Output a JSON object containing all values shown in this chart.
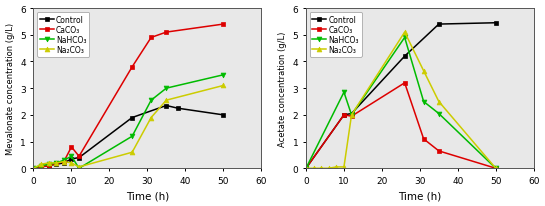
{
  "left": {
    "xlabel": "Time (h)",
    "ylabel": "Mevalonate concentration (g/L)",
    "xlim": [
      0,
      60
    ],
    "ylim": [
      0,
      6
    ],
    "series": [
      {
        "label": "Control",
        "color": "#000000",
        "marker": "s",
        "x": [
          0,
          2,
          4,
          6,
          8,
          10,
          12,
          26,
          35,
          38,
          50
        ],
        "y": [
          0.0,
          0.05,
          0.1,
          0.15,
          0.2,
          0.35,
          0.4,
          1.9,
          2.35,
          2.25,
          2.0
        ]
      },
      {
        "label": "CaCO₃",
        "color": "#dd0000",
        "marker": "s",
        "x": [
          0,
          2,
          4,
          6,
          8,
          10,
          12,
          26,
          31,
          35,
          50
        ],
        "y": [
          0.0,
          0.05,
          0.1,
          0.18,
          0.25,
          0.8,
          0.45,
          3.8,
          4.9,
          5.1,
          5.4
        ]
      },
      {
        "label": "NaHCO₃",
        "color": "#00bb00",
        "marker": "v",
        "x": [
          0,
          2,
          4,
          6,
          8,
          10,
          12,
          26,
          31,
          35,
          50
        ],
        "y": [
          0.0,
          0.1,
          0.15,
          0.2,
          0.3,
          0.45,
          0.0,
          1.2,
          2.55,
          3.0,
          3.5
        ]
      },
      {
        "label": "Na₂CO₃",
        "color": "#cccc00",
        "marker": "^",
        "x": [
          0,
          2,
          4,
          6,
          8,
          10,
          12,
          26,
          31,
          35,
          50
        ],
        "y": [
          0.0,
          0.15,
          0.2,
          0.2,
          0.25,
          0.2,
          0.05,
          0.6,
          1.9,
          2.55,
          3.1
        ]
      }
    ]
  },
  "right": {
    "xlabel": "Time (h)",
    "ylabel": "Acetate concentration (g/L)",
    "xlim": [
      0,
      60
    ],
    "ylim": [
      0,
      6
    ],
    "series": [
      {
        "label": "Control",
        "color": "#000000",
        "marker": "s",
        "x": [
          0,
          10,
          12,
          26,
          35,
          50
        ],
        "y": [
          0.0,
          2.0,
          2.05,
          4.2,
          5.4,
          5.45
        ]
      },
      {
        "label": "CaCO₃",
        "color": "#dd0000",
        "marker": "s",
        "x": [
          0,
          10,
          12,
          26,
          31,
          35,
          50
        ],
        "y": [
          0.0,
          2.0,
          1.95,
          3.2,
          1.1,
          0.65,
          0.0
        ]
      },
      {
        "label": "NaHCO₃",
        "color": "#00bb00",
        "marker": "v",
        "x": [
          0,
          10,
          12,
          26,
          31,
          35,
          50
        ],
        "y": [
          0.0,
          2.85,
          2.0,
          4.9,
          2.5,
          2.05,
          0.0
        ]
      },
      {
        "label": "Na₂CO₃",
        "color": "#cccc00",
        "marker": "^",
        "x": [
          0,
          2,
          4,
          6,
          8,
          10,
          12,
          26,
          31,
          35,
          50
        ],
        "y": [
          0.0,
          0.0,
          0.0,
          0.0,
          0.05,
          0.05,
          2.0,
          5.1,
          3.65,
          2.5,
          0.0
        ]
      }
    ]
  },
  "bg_color": "#e8e8e8",
  "xticks": [
    0,
    10,
    20,
    30,
    40,
    50,
    60
  ],
  "yticks": [
    0,
    1,
    2,
    3,
    4,
    5,
    6
  ]
}
